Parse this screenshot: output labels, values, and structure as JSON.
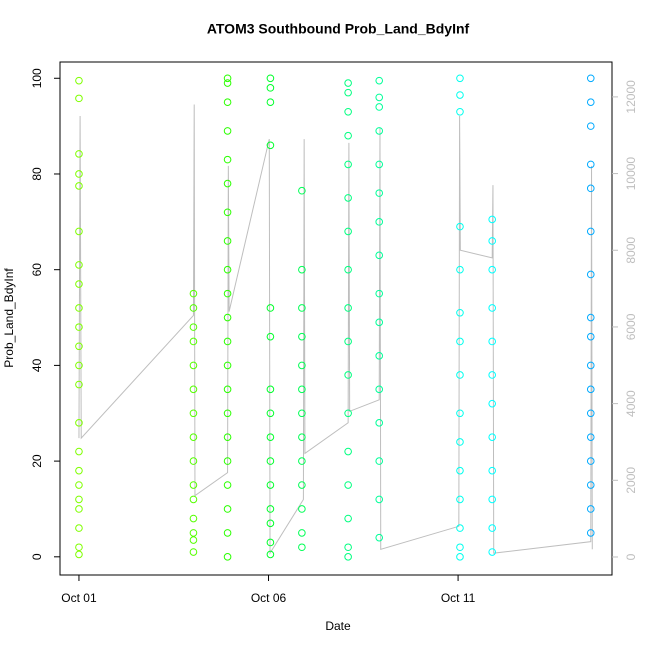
{
  "chart_data": {
    "type": "scatter",
    "title": "ATOM3 Southbound Prob_Land_BdyInf",
    "x_label": "Date",
    "y_label": "Prob_Land_BdyInf",
    "xlim": [
      0.5,
      15.06
    ],
    "xticks": [
      {
        "value": 1,
        "label": "Oct 01"
      },
      {
        "value": 6,
        "label": "Oct 06"
      },
      {
        "value": 11,
        "label": "Oct 11"
      }
    ],
    "ylim": [
      -3.8,
      103.4
    ],
    "yticks": [
      0,
      20,
      40,
      60,
      80,
      100
    ],
    "y2lim": [
      -470,
      12910
    ],
    "y2ticks": [
      0,
      2000,
      4000,
      6000,
      8000,
      10000,
      12000
    ],
    "series": [
      {
        "color": "#7fff00",
        "x": [
          1,
          1,
          1,
          1,
          1,
          1,
          1,
          1,
          1,
          1,
          1,
          1,
          1,
          1,
          1,
          1,
          1,
          1,
          1,
          1,
          1,
          1
        ],
        "values": [
          99.5,
          95.8,
          84.2,
          80,
          77.5,
          68,
          61,
          57,
          52,
          48,
          44,
          40,
          36,
          28,
          22,
          18,
          15,
          12,
          10,
          6,
          2,
          0.5
        ]
      },
      {
        "color": "#55ff00",
        "x": [
          4.02,
          4.02,
          4.02,
          4.02,
          4.02,
          4.02,
          4.02,
          4.02,
          4.02,
          4.02,
          4.02,
          4.02,
          4.02,
          4.02,
          4.02
        ],
        "values": [
          55,
          52,
          48,
          45,
          40,
          35,
          30,
          25,
          20,
          15,
          12,
          8,
          5,
          3.5,
          1
        ]
      },
      {
        "color": "#2bff00",
        "x": [
          4.92,
          4.92,
          4.92,
          4.92,
          4.92,
          4.92,
          4.92,
          4.92,
          4.92,
          4.92,
          4.92,
          4.92,
          4.92,
          4.92,
          4.92,
          4.92,
          4.92,
          4.92,
          4.92,
          4.92,
          4.92
        ],
        "values": [
          100,
          99,
          95,
          89,
          83,
          78,
          72,
          66,
          60,
          55,
          50,
          45,
          40,
          35,
          30,
          25,
          20,
          15,
          10,
          5,
          0
        ]
      },
      {
        "color": "#00ff2b",
        "x": [
          6.05,
          6.05,
          6.05,
          6.05,
          6.05,
          6.05,
          6.05,
          6.05,
          6.05,
          6.05,
          6.05,
          6.05,
          6.05,
          6.05,
          6.05
        ],
        "values": [
          100,
          98,
          95,
          86,
          52,
          46,
          35,
          30,
          25,
          20,
          15,
          10,
          7,
          3,
          0.5
        ]
      },
      {
        "color": "#00ff55",
        "x": [
          6.88,
          6.88,
          6.88,
          6.88,
          6.88,
          6.88,
          6.88,
          6.88,
          6.88,
          6.88,
          6.88,
          6.88,
          6.88
        ],
        "values": [
          76.5,
          60,
          52,
          46,
          40,
          35,
          30,
          25,
          20,
          15,
          10,
          5,
          2
        ]
      },
      {
        "color": "#00ff80",
        "x": [
          8.1,
          8.1,
          8.1,
          8.1,
          8.1,
          8.1,
          8.1,
          8.1,
          8.1,
          8.1,
          8.1,
          8.1,
          8.1,
          8.1,
          8.1,
          8.1,
          8.1
        ],
        "values": [
          99,
          97,
          93,
          88,
          82,
          75,
          68,
          60,
          52,
          45,
          38,
          30,
          22,
          15,
          8,
          2,
          0
        ]
      },
      {
        "color": "#00ff99",
        "x": [
          8.92,
          8.92,
          8.92,
          8.92,
          8.92,
          8.92,
          8.92,
          8.92,
          8.92,
          8.92,
          8.92,
          8.92,
          8.92,
          8.92,
          8.92,
          8.92
        ],
        "values": [
          99.5,
          96,
          94,
          89,
          82,
          76,
          70,
          63,
          55,
          49,
          42,
          35,
          28,
          20,
          12,
          4
        ]
      },
      {
        "color": "#00ffee",
        "x": [
          11.05,
          11.05,
          11.05,
          11.05,
          11.05,
          11.05,
          11.05,
          11.05,
          11.05,
          11.05,
          11.05,
          11.05,
          11.05,
          11.05,
          11.05
        ],
        "values": [
          100,
          96.5,
          93,
          69,
          60,
          51,
          45,
          38,
          30,
          24,
          18,
          12,
          6,
          2,
          0
        ]
      },
      {
        "color": "#00ffff",
        "x": [
          11.9,
          11.9,
          11.9,
          11.9,
          11.9,
          11.9,
          11.9,
          11.9,
          11.9,
          11.9,
          11.9,
          11.9
        ],
        "values": [
          70.5,
          66,
          60,
          52,
          45,
          38,
          32,
          25,
          18,
          12,
          6,
          1
        ]
      },
      {
        "color": "#00aaff",
        "x": [
          14.5,
          14.5,
          14.5,
          14.5,
          14.5,
          14.5,
          14.5,
          14.5,
          14.5,
          14.5,
          14.5,
          14.5,
          14.5,
          14.5,
          14.5,
          14.5,
          14.5
        ],
        "values": [
          100,
          95,
          90,
          82,
          77,
          68,
          59,
          50,
          46,
          40,
          35,
          30,
          25,
          20,
          15,
          10,
          5
        ]
      },
      {
        "type": "line",
        "axis": "y2",
        "color": "#bebebe",
        "x": [
          1.0,
          1.03,
          1.06,
          4.02,
          4.04,
          4.06,
          4.92,
          4.94,
          4.96,
          6.02,
          6.04,
          6.92,
          6.94,
          6.96,
          8.1,
          8.12,
          8.14,
          8.92,
          8.94,
          8.96,
          11.02,
          11.04,
          11.06,
          11.9,
          11.92,
          11.94,
          14.5,
          14.52,
          14.54
        ],
        "values": [
          3100,
          11500,
          3100,
          6300,
          11800,
          1600,
          2200,
          10200,
          6400,
          10900,
          100,
          1500,
          10900,
          2700,
          3500,
          10800,
          3800,
          4100,
          11200,
          200,
          800,
          11500,
          8000,
          7800,
          9700,
          100,
          400,
          10200,
          200
        ]
      }
    ]
  }
}
